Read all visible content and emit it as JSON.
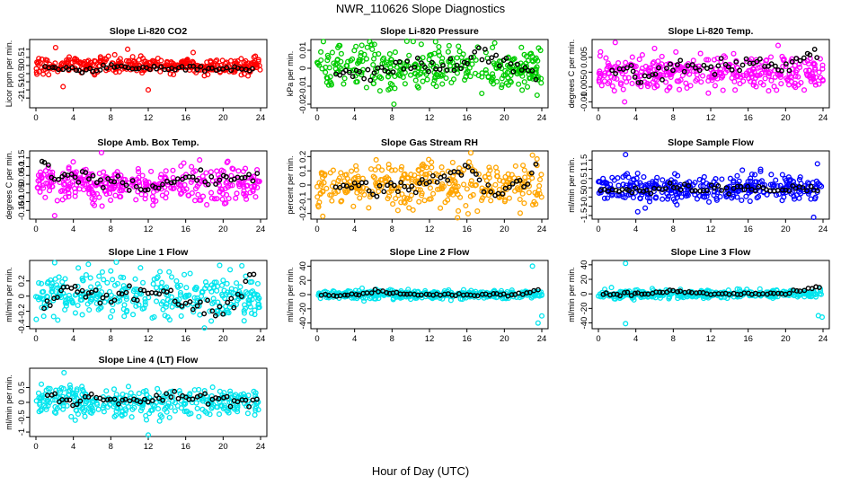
{
  "page": {
    "title": "NWR_110626  Slope Diagnostics",
    "x_axis_label": "Hour of Day (UTC)"
  },
  "chart_data": [
    {
      "type": "scatter",
      "title": "Slope Li-820 CO2",
      "ylabel": "Licor ppm per min.",
      "color": "#ff0000",
      "xlim": [
        0,
        24
      ],
      "ylim": [
        -2.6,
        1.6
      ],
      "yticks": [
        -2.0,
        -1.5,
        -1.0,
        -0.5,
        0.0,
        0.5,
        1.0
      ],
      "spread": 0.25,
      "ref_points": [
        [
          1.0,
          -0.1
        ],
        [
          3.2,
          -0.2
        ],
        [
          5.0,
          -0.3
        ],
        [
          7.6,
          -0.1
        ],
        [
          11.8,
          -0.2
        ],
        [
          16.0,
          -0.1
        ],
        [
          20.0,
          -0.2
        ],
        [
          23.6,
          -0.3
        ]
      ],
      "outliers": [
        [
          2.1,
          1.1
        ],
        [
          2.9,
          -1.3
        ],
        [
          9.8,
          1.0
        ],
        [
          16.8,
          0.8
        ],
        [
          12.0,
          -1.5
        ]
      ]
    },
    {
      "type": "scatter",
      "title": "Slope Li-820 Pressure",
      "ylabel": "kPa per min.",
      "color": "#00cc00",
      "xlim": [
        0,
        24
      ],
      "ylim": [
        -0.022,
        0.016
      ],
      "yticks": [
        -0.02,
        -0.01,
        0.0,
        0.01
      ],
      "spread": 0.006,
      "ref_points": [
        [
          2.0,
          0.0
        ],
        [
          4.2,
          -0.004
        ],
        [
          6.5,
          -0.002
        ],
        [
          10.8,
          0.003
        ],
        [
          13.5,
          0.0
        ],
        [
          17.2,
          0.008
        ],
        [
          21.0,
          0.002
        ],
        [
          23.8,
          -0.007
        ]
      ],
      "outliers": [
        [
          8.2,
          -0.02
        ],
        [
          13.0,
          0.012
        ],
        [
          23.5,
          -0.015
        ],
        [
          1.2,
          0.006
        ]
      ]
    },
    {
      "type": "scatter",
      "title": "Slope Li-820 Temp.",
      "ylabel": "degrees C per min.",
      "color": "#ff00ff",
      "xlim": [
        0,
        24
      ],
      "ylim": [
        -0.012,
        0.011
      ],
      "yticks": [
        -0.01,
        -0.005,
        0.0,
        0.005
      ],
      "spread": 0.003,
      "ref_points": [
        [
          1.5,
          0.0
        ],
        [
          3.5,
          0.001
        ],
        [
          4.2,
          -0.004
        ],
        [
          8.0,
          0.002
        ],
        [
          12.0,
          0.001
        ],
        [
          16.2,
          0.003
        ],
        [
          20.0,
          0.002
        ],
        [
          23.8,
          0.008
        ]
      ],
      "outliers": [
        [
          1.8,
          0.01
        ],
        [
          2.8,
          -0.01
        ],
        [
          6.0,
          0.008
        ],
        [
          19.2,
          0.009
        ]
      ]
    },
    {
      "type": "scatter",
      "title": "Slope Amb. Box Temp.",
      "ylabel": "degrees C per min.",
      "color": "#ff00ff",
      "xlim": [
        0,
        24
      ],
      "ylim": [
        -0.2,
        0.19
      ],
      "yticks": [
        -0.15,
        -0.1,
        -0.05,
        0.0,
        0.05,
        0.1,
        0.15
      ],
      "spread": 0.05,
      "ref_points": [
        [
          0.6,
          0.16
        ],
        [
          2.0,
          0.02
        ],
        [
          5.3,
          0.04
        ],
        [
          8.0,
          0.02
        ],
        [
          12.0,
          -0.02
        ],
        [
          16.0,
          0.04
        ],
        [
          20.0,
          0.02
        ],
        [
          24.0,
          0.06
        ]
      ],
      "outliers": [
        [
          2.0,
          -0.18
        ],
        [
          7.0,
          0.18
        ],
        [
          20.5,
          0.13
        ],
        [
          12.5,
          -0.12
        ]
      ]
    },
    {
      "type": "scatter",
      "title": "Slope Gas Stream RH",
      "ylabel": "percent per min.",
      "color": "#ffa500",
      "xlim": [
        0,
        24
      ],
      "ylim": [
        -0.24,
        0.24
      ],
      "yticks": [
        -0.2,
        -0.1,
        0.0,
        0.1,
        0.2
      ],
      "spread": 0.08,
      "ref_points": [
        [
          2.0,
          0.0
        ],
        [
          4.0,
          0.0
        ],
        [
          7.5,
          -0.04
        ],
        [
          12.0,
          0.02
        ],
        [
          16.2,
          0.1
        ],
        [
          19.0,
          -0.05
        ],
        [
          22.5,
          0.02
        ],
        [
          23.7,
          0.18
        ]
      ],
      "outliers": [
        [
          0.6,
          -0.22
        ],
        [
          15.0,
          -0.23
        ],
        [
          23.0,
          0.21
        ]
      ]
    },
    {
      "type": "scatter",
      "title": "Slope Sample Flow",
      "ylabel": "ml/min per min.",
      "color": "#0000ff",
      "xlim": [
        0,
        24
      ],
      "ylim": [
        -1.7,
        2.0
      ],
      "yticks": [
        -1.5,
        -1.0,
        -0.5,
        0.0,
        0.5,
        1.0,
        1.5
      ],
      "spread": 0.35,
      "ref_points": [
        [
          0.3,
          -0.1
        ],
        [
          3.0,
          -0.1
        ],
        [
          4.0,
          -0.2
        ],
        [
          8.0,
          0.0
        ],
        [
          12.0,
          -0.1
        ],
        [
          16.0,
          0.0
        ],
        [
          20.0,
          -0.1
        ],
        [
          23.8,
          0.0
        ]
      ],
      "outliers": [
        [
          2.9,
          1.8
        ],
        [
          4.2,
          -1.3
        ],
        [
          5.0,
          -1.1
        ],
        [
          23.4,
          1.3
        ],
        [
          23.0,
          -1.6
        ]
      ]
    },
    {
      "type": "scatter",
      "title": "Slope Line 1 Flow",
      "ylabel": "ml/min per min.",
      "color": "#00e5ee",
      "xlim": [
        0,
        24
      ],
      "ylim": [
        -0.43,
        0.47
      ],
      "yticks": [
        -0.4,
        -0.2,
        0.0,
        0.2
      ],
      "spread": 0.15,
      "ref_points": [
        [
          0.8,
          -0.1
        ],
        [
          3.0,
          0.1
        ],
        [
          6.0,
          0.05
        ],
        [
          8.0,
          0.0
        ],
        [
          12.0,
          0.1
        ],
        [
          16.0,
          -0.1
        ],
        [
          20.0,
          -0.2
        ],
        [
          23.6,
          0.3
        ]
      ],
      "outliers": [
        [
          2.0,
          0.44
        ],
        [
          5.6,
          0.42
        ],
        [
          18.0,
          -0.42
        ],
        [
          22.0,
          0.4
        ]
      ]
    },
    {
      "type": "scatter",
      "title": "Slope Line 2 Flow",
      "ylabel": "ml/min per min.",
      "color": "#00e5ee",
      "xlim": [
        0,
        24
      ],
      "ylim": [
        -48,
        48
      ],
      "yticks": [
        -40,
        -20,
        0,
        20,
        40
      ],
      "spread": 3,
      "ref_points": [
        [
          0.5,
          0
        ],
        [
          4.5,
          0
        ],
        [
          6.2,
          5
        ],
        [
          10.0,
          0
        ],
        [
          14.0,
          0
        ],
        [
          18.0,
          0
        ],
        [
          22.0,
          0
        ],
        [
          24.0,
          8
        ]
      ],
      "outliers": [
        [
          4.8,
          9
        ],
        [
          5.0,
          -9
        ],
        [
          23.0,
          40
        ],
        [
          24.0,
          -30
        ],
        [
          23.6,
          -40
        ]
      ]
    },
    {
      "type": "scatter",
      "title": "Slope Line 3 Flow",
      "ylabel": "ml/min per min.",
      "color": "#00e5ee",
      "xlim": [
        0,
        24
      ],
      "ylim": [
        -48,
        46
      ],
      "yticks": [
        -40,
        -20,
        0,
        20,
        40
      ],
      "spread": 3,
      "ref_points": [
        [
          0.5,
          0
        ],
        [
          2.0,
          0
        ],
        [
          5.0,
          0
        ],
        [
          8.0,
          4
        ],
        [
          12.0,
          0
        ],
        [
          16.0,
          0
        ],
        [
          20.0,
          0
        ],
        [
          24.0,
          10
        ]
      ],
      "outliers": [
        [
          2.9,
          42
        ],
        [
          2.9,
          -41
        ],
        [
          23.5,
          -30
        ],
        [
          23.9,
          -32
        ]
      ]
    },
    {
      "type": "scatter",
      "title": "Slope Line 4 (LT) Flow",
      "ylabel": "ml/min per min.",
      "color": "#00e5ee",
      "xlim": [
        0,
        24
      ],
      "ylim": [
        -1.15,
        1.15
      ],
      "yticks": [
        -1.0,
        -0.5,
        0.0,
        0.5
      ],
      "spread": 0.25,
      "ref_points": [
        [
          1.3,
          0.3
        ],
        [
          4.0,
          0.0
        ],
        [
          6.0,
          0.2
        ],
        [
          8.0,
          0.0
        ],
        [
          12.0,
          0.1
        ],
        [
          16.0,
          0.2
        ],
        [
          20.0,
          0.1
        ],
        [
          24.0,
          0.0
        ]
      ],
      "outliers": [
        [
          3.0,
          1.0
        ],
        [
          12.0,
          -1.1
        ],
        [
          4.2,
          -0.6
        ]
      ]
    }
  ],
  "xticks": [
    0,
    4,
    8,
    12,
    16,
    20,
    24
  ]
}
